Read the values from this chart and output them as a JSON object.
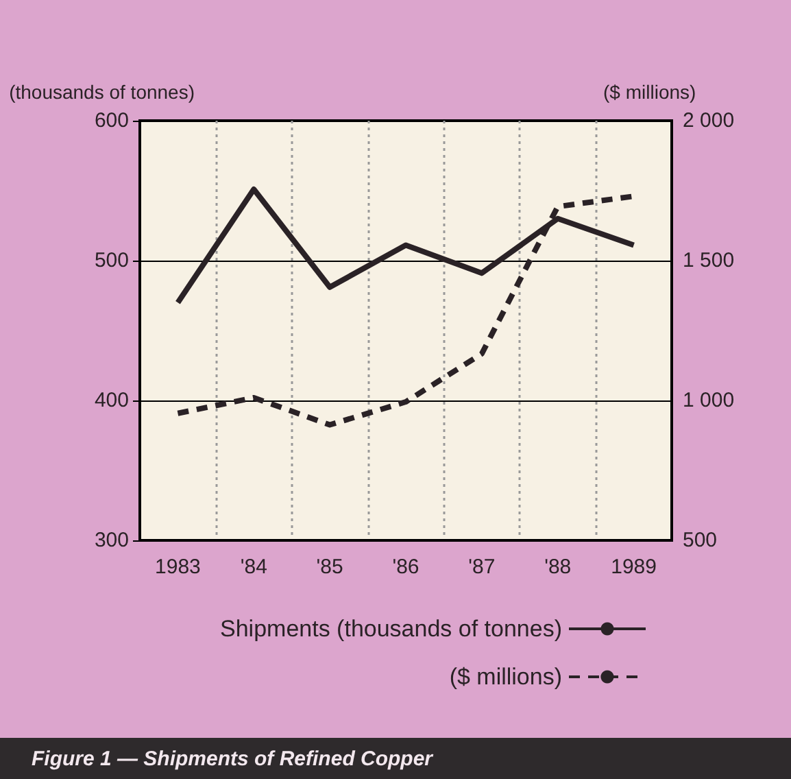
{
  "chart_data": {
    "type": "line",
    "title": "Figure 1 — Shipments of Refined Copper",
    "ylabel": "(thousands of tonnes)",
    "y2label": "($ millions)",
    "categories": [
      "1983",
      "'84",
      "'85",
      "'86",
      "'87",
      "'88",
      "1989"
    ],
    "series": [
      {
        "name": "Shipments (thousands of tonnes)",
        "color": "#2a2226",
        "values": [
          470,
          551,
          481,
          511,
          491,
          530,
          511
        ],
        "line_style": "solid"
      },
      {
        "name": "($ millions)",
        "color": "#2a2226",
        "axis": "y2",
        "values": [
          954,
          1010,
          913,
          995,
          1167,
          1693,
          1730
        ],
        "line_style": "dashed"
      }
    ],
    "ylim": [
      300,
      600
    ],
    "yticks": [
      300,
      400,
      500,
      600
    ],
    "y2lim": [
      500,
      2000
    ],
    "y2ticks": [
      {
        "value": 500,
        "label": "500"
      },
      {
        "value": 1000,
        "label": "1 000"
      },
      {
        "value": 1500,
        "label": "1 500"
      },
      {
        "value": 2000,
        "label": "2 000"
      }
    ],
    "grid": true,
    "legend": "bottom",
    "marker": "none"
  }
}
